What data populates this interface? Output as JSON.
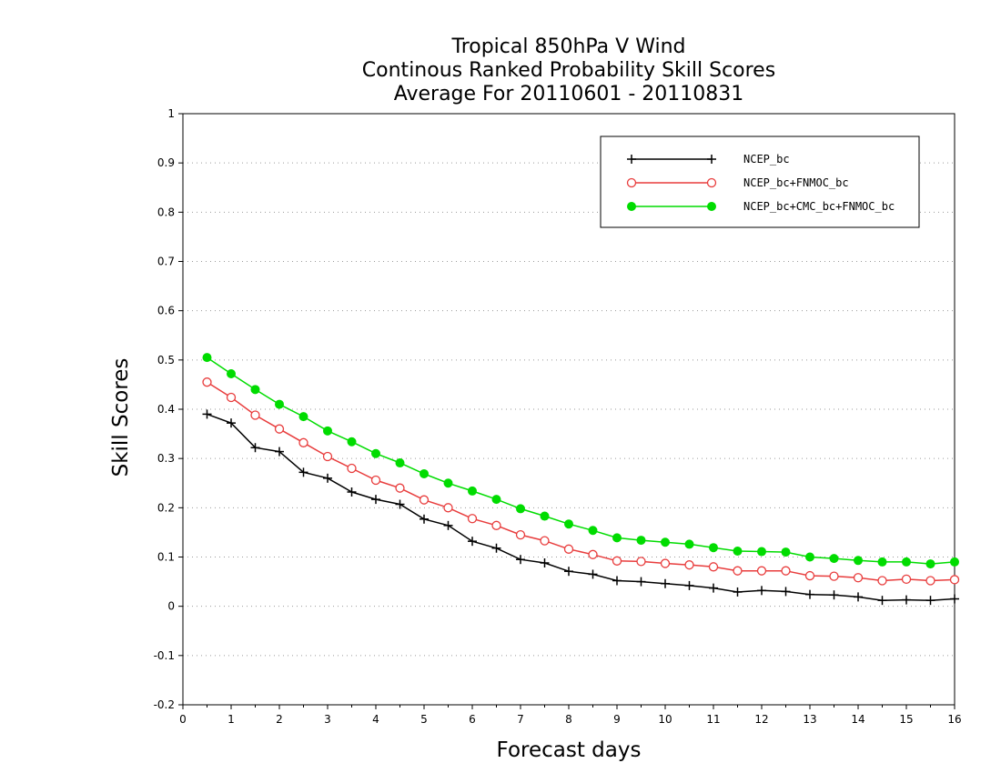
{
  "chart_data": {
    "type": "line",
    "title": [
      "Tropical 850hPa V Wind",
      "Continous Ranked Probability Skill Scores",
      "Average For 20110601 - 20110831"
    ],
    "xlabel": "Forecast days",
    "ylabel": "Skill Scores",
    "xlim": [
      0,
      16
    ],
    "ylim": [
      -0.2,
      1
    ],
    "xticks": [
      0,
      1,
      2,
      3,
      4,
      5,
      6,
      7,
      8,
      9,
      10,
      11,
      12,
      13,
      14,
      15,
      16
    ],
    "yticks": [
      -0.2,
      -0.1,
      0,
      0.1,
      0.2,
      0.3,
      0.4,
      0.5,
      0.6,
      0.7,
      0.8,
      0.9,
      1
    ],
    "ytick_labels": [
      "-0.2",
      "-0.1",
      "0",
      "0.1",
      "0.2",
      "0.3",
      "0.4",
      "0.5",
      "0.6",
      "0.7",
      "0.8",
      "0.9",
      "1"
    ],
    "grid": "horizontal dotted",
    "legend_position": "top-right",
    "x": [
      0.5,
      1,
      1.5,
      2,
      2.5,
      3,
      3.5,
      4,
      4.5,
      5,
      5.5,
      6,
      6.5,
      7,
      7.5,
      8,
      8.5,
      9,
      9.5,
      10,
      10.5,
      11,
      11.5,
      12,
      12.5,
      13,
      13.5,
      14,
      14.5,
      15,
      15.5,
      16
    ],
    "series": [
      {
        "name": "NCEP_bc",
        "color": "#000000",
        "marker": "plus",
        "values": [
          0.39,
          0.372,
          0.322,
          0.314,
          0.272,
          0.26,
          0.232,
          0.217,
          0.207,
          0.177,
          0.164,
          0.132,
          0.118,
          0.095,
          0.088,
          0.071,
          0.065,
          0.052,
          0.05,
          0.046,
          0.042,
          0.037,
          0.029,
          0.032,
          0.03,
          0.024,
          0.023,
          0.019,
          0.012,
          0.013,
          0.012,
          0.015
        ]
      },
      {
        "name": "NCEP_bc+FNMOC_bc",
        "color": "#e83c3c",
        "marker": "open-circle",
        "values": [
          0.455,
          0.424,
          0.388,
          0.36,
          0.332,
          0.304,
          0.28,
          0.256,
          0.24,
          0.216,
          0.2,
          0.178,
          0.164,
          0.145,
          0.133,
          0.116,
          0.105,
          0.092,
          0.091,
          0.087,
          0.084,
          0.08,
          0.072,
          0.072,
          0.072,
          0.062,
          0.061,
          0.058,
          0.052,
          0.055,
          0.052,
          0.054
        ]
      },
      {
        "name": "NCEP_bc+CMC_bc+FNMOC_bc",
        "color": "#00dc00",
        "marker": "filled-circle",
        "values": [
          0.505,
          0.472,
          0.44,
          0.41,
          0.385,
          0.356,
          0.334,
          0.31,
          0.291,
          0.269,
          0.25,
          0.234,
          0.217,
          0.198,
          0.183,
          0.167,
          0.154,
          0.139,
          0.134,
          0.13,
          0.126,
          0.119,
          0.112,
          0.111,
          0.11,
          0.1,
          0.097,
          0.093,
          0.09,
          0.09,
          0.086,
          0.09
        ]
      }
    ]
  }
}
